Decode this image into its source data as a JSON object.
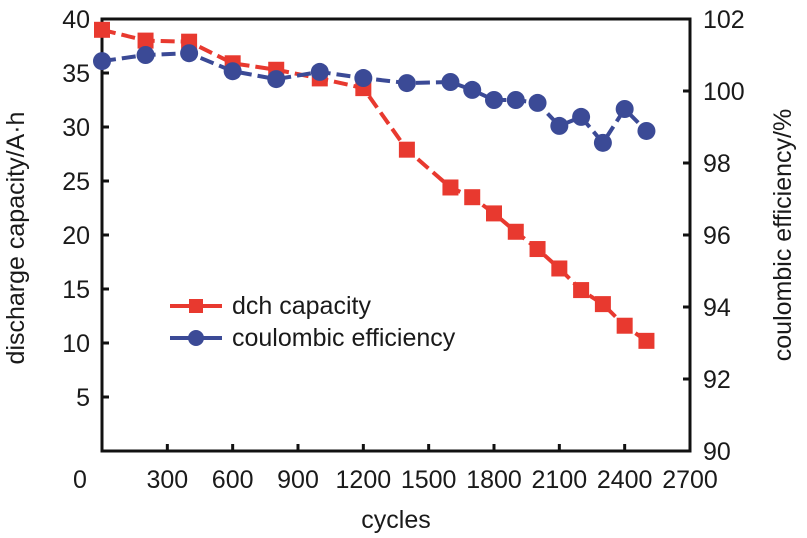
{
  "chart_data": {
    "type": "line",
    "title": "",
    "xlabel": "cycles",
    "ylabel_left": "discharge capacity/A·h",
    "ylabel_right": "coulombic efficiency/%",
    "xlim": [
      0,
      2700
    ],
    "ylim_left": [
      0,
      40
    ],
    "ylim_right": [
      90,
      102
    ],
    "x_ticks": [
      "0",
      "300",
      "600",
      "900",
      "1200",
      "1500",
      "1800",
      "2100",
      "2400",
      "2700"
    ],
    "x_tick_values": [
      0,
      300,
      600,
      900,
      1200,
      1500,
      1800,
      2100,
      2400,
      2700
    ],
    "y_left_ticks": [
      "5",
      "10",
      "15",
      "20",
      "25",
      "30",
      "35",
      "40"
    ],
    "y_left_tick_values": [
      5,
      10,
      15,
      20,
      25,
      30,
      35,
      40
    ],
    "y_right_ticks": [
      "90",
      "92",
      "94",
      "96",
      "98",
      "100",
      "102"
    ],
    "y_right_tick_values": [
      90,
      92,
      94,
      96,
      98,
      100,
      102
    ],
    "grid": false,
    "legend_position": "center-left",
    "x": [
      0,
      200,
      400,
      600,
      800,
      1000,
      1200,
      1400,
      1600,
      1700,
      1800,
      1900,
      2000,
      2100,
      2200,
      2300,
      2400,
      2500
    ],
    "series": [
      {
        "name": "dch capacity",
        "axis": "left",
        "marker": "square",
        "color": "#e8392f",
        "values": [
          39.0,
          38.0,
          37.9,
          35.9,
          35.3,
          34.5,
          33.6,
          27.9,
          24.4,
          23.5,
          22.0,
          20.3,
          18.7,
          16.9,
          14.9,
          13.6,
          11.6,
          10.2
        ]
      },
      {
        "name": "coulombic efficiency",
        "axis": "right",
        "marker": "circle",
        "color": "#3b4a96",
        "values": [
          100.83,
          101.0,
          101.05,
          100.55,
          100.33,
          100.53,
          100.36,
          100.22,
          100.25,
          100.03,
          99.75,
          99.75,
          99.67,
          99.03,
          99.28,
          98.56,
          99.5,
          98.89
        ]
      }
    ]
  }
}
